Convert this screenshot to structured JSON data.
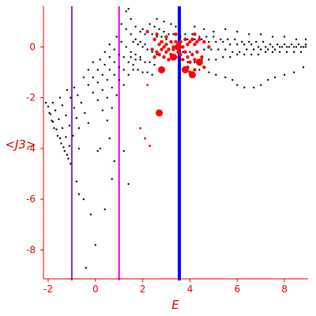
{
  "chart_data": {
    "type": "scatter",
    "title": "",
    "xlabel": "E",
    "ylabel": "<J3>",
    "xlim": [
      -2.2,
      9.0
    ],
    "ylim": [
      -9.2,
      1.6
    ],
    "xticks": [
      -2,
      0,
      2,
      4,
      6,
      8
    ],
    "yticks": [
      0,
      -2,
      -4,
      -6,
      -8
    ],
    "colors": {
      "axis": "#e00000",
      "tick_text": "#e00000",
      "black_points": "#000000",
      "red_points": "#ff0000",
      "line_purple": "#7b2fbe",
      "line_magenta": "#e000e0",
      "line_blue": "#0000ff"
    },
    "vertical_lines": [
      {
        "x": -1.0,
        "color": "#7b2fbe",
        "width": 2
      },
      {
        "x": 1.0,
        "color": "#e000e0",
        "width": 2
      },
      {
        "x": 3.55,
        "color": "#0000ff",
        "width": 4
      }
    ],
    "series": [
      {
        "color": "#000000",
        "marker_size": 1.2,
        "points": [
          [
            -2.1,
            -2.2
          ],
          [
            -1.95,
            -2.6
          ],
          [
            -1.85,
            -2.9
          ],
          [
            -1.75,
            -3.2
          ],
          [
            -1.6,
            -3.5
          ],
          [
            -1.45,
            -3.8
          ],
          [
            -1.3,
            -4.1
          ],
          [
            -1.15,
            -4.4
          ],
          [
            -1.05,
            -4.6
          ],
          [
            -2.0,
            -2.35
          ],
          [
            -1.9,
            -2.65
          ],
          [
            -1.8,
            -2.95
          ],
          [
            -1.65,
            -3.25
          ],
          [
            -1.5,
            -3.6
          ],
          [
            -1.35,
            -3.95
          ],
          [
            -1.2,
            -4.25
          ],
          [
            -1.8,
            -2.2
          ],
          [
            -1.7,
            -2.5
          ],
          [
            -1.55,
            -2.85
          ],
          [
            -1.4,
            -3.2
          ],
          [
            -1.25,
            -3.55
          ],
          [
            -1.1,
            -3.9
          ],
          [
            -1.5,
            -2.0
          ],
          [
            -1.4,
            -2.3
          ],
          [
            -1.25,
            -2.7
          ],
          [
            -1.1,
            -3.1
          ],
          [
            -0.95,
            -3.5
          ],
          [
            -1.2,
            -1.7
          ],
          [
            -1.05,
            -2.0
          ],
          [
            -0.9,
            -2.4
          ],
          [
            -0.8,
            -2.8
          ],
          [
            -0.7,
            -3.2
          ],
          [
            -0.9,
            -1.6
          ],
          [
            -0.75,
            -1.9
          ],
          [
            -0.6,
            -2.2
          ],
          [
            -0.45,
            -2.6
          ],
          [
            -0.3,
            -3.0
          ],
          [
            -0.7,
            -4.0
          ],
          [
            -0.8,
            -5.3
          ],
          [
            -0.7,
            -5.8
          ],
          [
            -0.5,
            -6.0
          ],
          [
            -0.2,
            -6.6
          ],
          [
            0.1,
            -4.1
          ],
          [
            0.4,
            -6.4
          ],
          [
            0.0,
            -7.8
          ],
          [
            -0.4,
            -8.7
          ],
          [
            0.2,
            -4.0
          ],
          [
            0.6,
            -3.6
          ],
          [
            0.7,
            -5.2
          ],
          [
            0.8,
            -4.5
          ],
          [
            1.2,
            -4.1
          ],
          [
            1.4,
            -5.4
          ],
          [
            -0.5,
            -1.2
          ],
          [
            -0.3,
            -1.5
          ],
          [
            -0.1,
            -1.8
          ],
          [
            0.1,
            -2.1
          ],
          [
            0.3,
            -2.5
          ],
          [
            0.5,
            -2.9
          ],
          [
            -0.3,
            -0.9
          ],
          [
            -0.1,
            -1.2
          ],
          [
            0.1,
            -1.4
          ],
          [
            0.3,
            -1.7
          ],
          [
            0.5,
            -2.0
          ],
          [
            0.7,
            -2.4
          ],
          [
            -0.1,
            -0.6
          ],
          [
            0.1,
            -0.9
          ],
          [
            0.3,
            -1.1
          ],
          [
            0.5,
            -1.3
          ],
          [
            0.7,
            -1.6
          ],
          [
            0.9,
            -1.9
          ],
          [
            0.2,
            -0.5
          ],
          [
            0.4,
            -0.7
          ],
          [
            0.6,
            -0.9
          ],
          [
            0.8,
            -1.1
          ],
          [
            1.0,
            -1.3
          ],
          [
            1.2,
            -1.5
          ],
          [
            0.4,
            -0.2
          ],
          [
            0.6,
            -0.4
          ],
          [
            0.8,
            -0.6
          ],
          [
            1.0,
            -0.8
          ],
          [
            1.2,
            -0.9
          ],
          [
            1.4,
            -1.1
          ],
          [
            0.6,
            0.1
          ],
          [
            0.8,
            -0.1
          ],
          [
            1.0,
            -0.3
          ],
          [
            1.2,
            -0.4
          ],
          [
            1.4,
            -0.6
          ],
          [
            1.6,
            -0.7
          ],
          [
            0.9,
            0.4
          ],
          [
            1.1,
            0.2
          ],
          [
            1.3,
            0.0
          ],
          [
            1.5,
            -0.2
          ],
          [
            1.7,
            -0.3
          ],
          [
            1.9,
            -0.4
          ],
          [
            1.1,
            0.9
          ],
          [
            1.3,
            0.7
          ],
          [
            1.5,
            0.5
          ],
          [
            1.7,
            0.3
          ],
          [
            1.9,
            0.2
          ],
          [
            2.1,
            0.1
          ],
          [
            1.3,
            1.4
          ],
          [
            1.4,
            1.5
          ],
          [
            1.5,
            1.1
          ],
          [
            1.7,
            0.8
          ],
          [
            1.9,
            0.6
          ],
          [
            2.1,
            0.5
          ],
          [
            1.6,
            0.2
          ],
          [
            1.8,
            0.1
          ],
          [
            2.0,
            0.0
          ],
          [
            2.2,
            -0.1
          ],
          [
            2.4,
            -0.2
          ],
          [
            2.6,
            -0.3
          ],
          [
            1.5,
            -0.4
          ],
          [
            1.7,
            -0.5
          ],
          [
            1.9,
            -0.5
          ],
          [
            2.1,
            -0.6
          ],
          [
            2.3,
            -0.6
          ],
          [
            2.5,
            -0.7
          ],
          [
            1.6,
            -0.9
          ],
          [
            1.8,
            -0.9
          ],
          [
            2.0,
            -1.0
          ],
          [
            2.2,
            -1.0
          ],
          [
            2.4,
            -1.1
          ],
          [
            2.0,
            0.7
          ],
          [
            2.2,
            0.6
          ],
          [
            2.4,
            0.5
          ],
          [
            2.6,
            0.4
          ],
          [
            2.8,
            0.4
          ],
          [
            3.0,
            0.3
          ],
          [
            2.3,
            0.9
          ],
          [
            2.5,
            0.8
          ],
          [
            2.7,
            0.7
          ],
          [
            2.9,
            0.6
          ],
          [
            3.1,
            0.5
          ],
          [
            3.3,
            0.5
          ],
          [
            3.6,
            0.4
          ],
          [
            3.9,
            0.3
          ],
          [
            4.2,
            0.3
          ],
          [
            4.5,
            0.3
          ],
          [
            4.8,
            0.2
          ],
          [
            5.1,
            0.2
          ],
          [
            5.4,
            0.2
          ],
          [
            5.7,
            0.1
          ],
          [
            6.0,
            0.1
          ],
          [
            6.3,
            0.1
          ],
          [
            6.6,
            0.1
          ],
          [
            6.9,
            0.0
          ],
          [
            7.2,
            0.0
          ],
          [
            7.5,
            0.0
          ],
          [
            7.8,
            0.0
          ],
          [
            8.1,
            0.0
          ],
          [
            8.4,
            0.0
          ],
          [
            8.7,
            0.0
          ],
          [
            8.9,
            0.0
          ],
          [
            3.8,
            0.5
          ],
          [
            4.1,
            0.5
          ],
          [
            4.4,
            0.4
          ],
          [
            4.7,
            0.4
          ],
          [
            5.0,
            0.4
          ],
          [
            5.3,
            0.3
          ],
          [
            5.6,
            0.3
          ],
          [
            5.9,
            0.3
          ],
          [
            6.2,
            0.2
          ],
          [
            6.5,
            0.2
          ],
          [
            6.8,
            0.2
          ],
          [
            7.1,
            0.2
          ],
          [
            7.4,
            0.1
          ],
          [
            7.7,
            0.1
          ],
          [
            8.0,
            0.1
          ],
          [
            8.3,
            0.1
          ],
          [
            8.6,
            0.1
          ],
          [
            8.9,
            0.1
          ],
          [
            3.7,
            -0.2
          ],
          [
            4.0,
            -0.2
          ],
          [
            4.3,
            -0.2
          ],
          [
            4.6,
            -0.1
          ],
          [
            4.9,
            -0.1
          ],
          [
            5.2,
            -0.1
          ],
          [
            5.5,
            -0.1
          ],
          [
            5.8,
            -0.2
          ],
          [
            6.1,
            -0.2
          ],
          [
            6.4,
            -0.1
          ],
          [
            6.7,
            -0.1
          ],
          [
            7.0,
            -0.1
          ],
          [
            7.3,
            -0.1
          ],
          [
            7.6,
            -0.1
          ],
          [
            7.9,
            0.0
          ],
          [
            8.2,
            0.0
          ],
          [
            8.5,
            0.0
          ],
          [
            8.8,
            0.0
          ],
          [
            3.6,
            -0.5
          ],
          [
            3.9,
            -0.6
          ],
          [
            4.2,
            -0.6
          ],
          [
            4.5,
            -0.5
          ],
          [
            4.8,
            -0.5
          ],
          [
            5.1,
            -0.5
          ],
          [
            5.4,
            -0.4
          ],
          [
            5.7,
            -0.4
          ],
          [
            6.0,
            -0.3
          ],
          [
            6.3,
            -0.3
          ],
          [
            6.6,
            -0.3
          ],
          [
            6.9,
            -0.3
          ],
          [
            7.2,
            -0.2
          ],
          [
            7.5,
            -0.2
          ],
          [
            7.8,
            -0.2
          ],
          [
            8.1,
            -0.2
          ],
          [
            8.4,
            -0.2
          ],
          [
            8.7,
            -0.2
          ],
          [
            4.4,
            -0.9
          ],
          [
            4.8,
            -1.0
          ],
          [
            5.1,
            -1.1
          ],
          [
            5.5,
            -1.2
          ],
          [
            5.8,
            -1.3
          ],
          [
            6.0,
            -1.5
          ],
          [
            6.3,
            -1.6
          ],
          [
            6.7,
            -1.6
          ],
          [
            7.0,
            -1.5
          ],
          [
            7.3,
            -1.3
          ],
          [
            7.6,
            -1.2
          ],
          [
            8.0,
            -1.1
          ],
          [
            8.4,
            -1.0
          ],
          [
            8.8,
            -0.8
          ],
          [
            5.0,
            0.6
          ],
          [
            5.5,
            0.7
          ],
          [
            6.0,
            0.6
          ],
          [
            6.5,
            0.5
          ],
          [
            7.0,
            0.5
          ],
          [
            7.5,
            0.4
          ],
          [
            8.0,
            0.4
          ],
          [
            8.5,
            0.3
          ],
          [
            8.9,
            0.3
          ],
          [
            4.2,
            0.8
          ],
          [
            4.6,
            0.7
          ],
          [
            3.4,
            0.8
          ],
          [
            3.2,
            0.9
          ],
          [
            2.9,
            1.0
          ],
          [
            2.6,
            1.1
          ]
        ]
      },
      {
        "color": "#ff0000",
        "marker_size": 2.2,
        "points": [
          [
            2.6,
            -0.2
          ],
          [
            2.7,
            -0.3
          ],
          [
            2.8,
            -0.1
          ],
          [
            2.9,
            -0.4
          ],
          [
            3.0,
            -0.2
          ],
          [
            3.1,
            -0.5
          ],
          [
            3.2,
            -0.3
          ],
          [
            3.3,
            -0.1
          ],
          [
            3.4,
            -0.4
          ],
          [
            3.5,
            -0.2
          ],
          [
            2.7,
            0.1
          ],
          [
            2.8,
            0.2
          ],
          [
            2.9,
            0.0
          ],
          [
            3.0,
            0.1
          ],
          [
            3.1,
            -0.1
          ],
          [
            3.2,
            0.2
          ],
          [
            3.3,
            0.0
          ],
          [
            3.4,
            0.2
          ],
          [
            3.5,
            0.1
          ],
          [
            3.6,
            0.2
          ],
          [
            3.7,
            0.0
          ],
          [
            3.8,
            0.3
          ],
          [
            3.9,
            0.1
          ],
          [
            4.0,
            0.2
          ],
          [
            4.1,
            0.3
          ],
          [
            4.2,
            0.1
          ],
          [
            4.3,
            0.2
          ],
          [
            4.4,
            0.3
          ],
          [
            4.6,
            0.2
          ],
          [
            3.6,
            -0.3
          ],
          [
            3.7,
            -0.5
          ],
          [
            3.8,
            -0.2
          ],
          [
            3.9,
            -0.4
          ],
          [
            4.0,
            -0.6
          ],
          [
            4.1,
            -0.3
          ],
          [
            4.2,
            -0.5
          ],
          [
            4.3,
            -0.2
          ],
          [
            4.5,
            -0.4
          ],
          [
            2.5,
            0.3
          ],
          [
            2.6,
            0.5
          ],
          [
            3.0,
            0.4
          ],
          [
            3.4,
            0.5
          ],
          [
            4.2,
            0.5
          ],
          [
            2.4,
            -0.1
          ],
          [
            2.5,
            -0.4
          ],
          [
            4.4,
            -0.6
          ],
          [
            4.6,
            -0.8
          ],
          [
            4.2,
            -0.9
          ],
          [
            3.9,
            -0.8
          ],
          [
            4.0,
            -1.0
          ],
          [
            2.2,
            0.6
          ],
          [
            4.8,
            0.0
          ]
        ]
      },
      {
        "color": "#ff0000",
        "marker_size": 1.4,
        "points": [
          [
            2.2,
            -1.5
          ],
          [
            1.9,
            -3.2
          ],
          [
            2.1,
            -3.6
          ],
          [
            2.3,
            -3.9
          ]
        ]
      },
      {
        "color": "#ff0000",
        "marker_size": 4.5,
        "points": [
          [
            2.8,
            -0.9
          ],
          [
            2.7,
            -2.6
          ],
          [
            3.5,
            0.0
          ],
          [
            3.3,
            -0.4
          ],
          [
            3.8,
            -0.9
          ],
          [
            4.1,
            -1.1
          ],
          [
            4.4,
            -0.6
          ]
        ]
      }
    ]
  }
}
